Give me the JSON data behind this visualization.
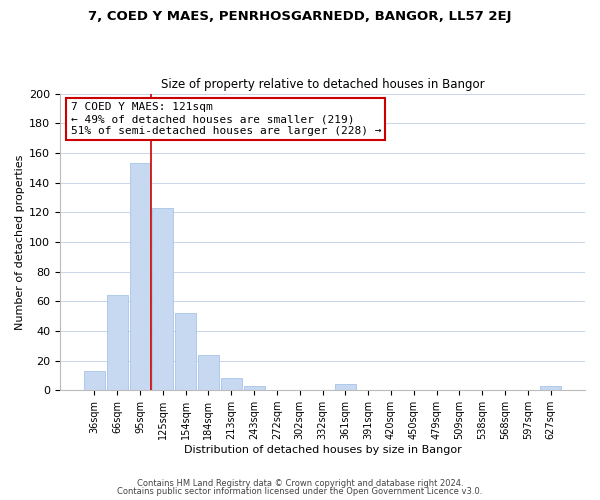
{
  "title1": "7, COED Y MAES, PENRHOSGARNEDD, BANGOR, LL57 2EJ",
  "title2": "Size of property relative to detached houses in Bangor",
  "xlabel": "Distribution of detached houses by size in Bangor",
  "ylabel": "Number of detached properties",
  "bar_labels": [
    "36sqm",
    "66sqm",
    "95sqm",
    "125sqm",
    "154sqm",
    "184sqm",
    "213sqm",
    "243sqm",
    "272sqm",
    "302sqm",
    "332sqm",
    "361sqm",
    "391sqm",
    "420sqm",
    "450sqm",
    "479sqm",
    "509sqm",
    "538sqm",
    "568sqm",
    "597sqm",
    "627sqm"
  ],
  "bar_values": [
    13,
    64,
    153,
    123,
    52,
    24,
    8,
    3,
    0,
    0,
    0,
    4,
    0,
    0,
    0,
    0,
    0,
    0,
    0,
    0,
    3
  ],
  "bar_color": "#c6d9f1",
  "bar_edge_color": "#a8c4e8",
  "vline_color": "#cc0000",
  "ylim": [
    0,
    200
  ],
  "yticks": [
    0,
    20,
    40,
    60,
    80,
    100,
    120,
    140,
    160,
    180,
    200
  ],
  "annotation_title": "7 COED Y MAES: 121sqm",
  "annotation_line1": "← 49% of detached houses are smaller (219)",
  "annotation_line2": "51% of semi-detached houses are larger (228) →",
  "annotation_box_color": "#ffffff",
  "annotation_box_edge": "#cc0000",
  "footer1": "Contains HM Land Registry data © Crown copyright and database right 2024.",
  "footer2": "Contains public sector information licensed under the Open Government Licence v3.0.",
  "bg_color": "#ffffff",
  "grid_color": "#c8d4e8"
}
